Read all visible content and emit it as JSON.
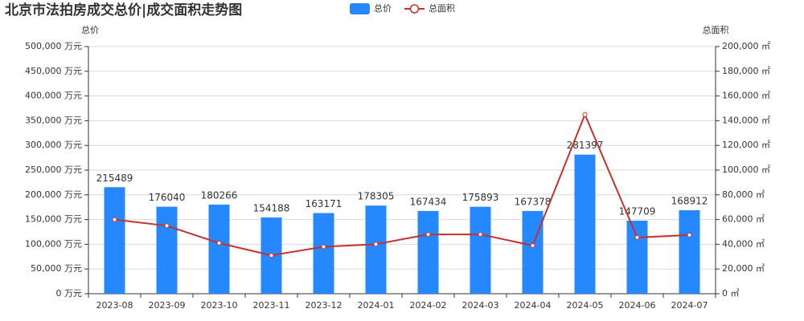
{
  "chart_data": {
    "type": "bar_line",
    "title": "北京市法拍房成交总价|成交面积走势图",
    "y_label": "总价",
    "y2_label": "总面积",
    "categories": [
      "2023-08",
      "2023-09",
      "2023-10",
      "2023-11",
      "2023-12",
      "2024-01",
      "2024-02",
      "2024-03",
      "2024-04",
      "2024-05",
      "2024-06",
      "2024-07"
    ],
    "series": [
      {
        "name": "总价",
        "type": "bar",
        "color": "#2688ff",
        "values": [
          215489,
          176040,
          180266,
          154188,
          163171,
          178305,
          167434,
          175893,
          167378,
          281397,
          147709,
          168912
        ]
      },
      {
        "name": "总面积",
        "type": "line",
        "axis": "y2",
        "color": "#c8302d",
        "values": [
          60000,
          55000,
          41000,
          31000,
          38000,
          40000,
          48000,
          48000,
          39000,
          145000,
          45500,
          47500
        ]
      }
    ],
    "ylim": [
      0,
      500000
    ],
    "yticks": [
      {
        "value": 0,
        "label": "0 万元"
      },
      {
        "value": 50000,
        "label": "50,000 万元"
      },
      {
        "value": 100000,
        "label": "100,000 万元"
      },
      {
        "value": 150000,
        "label": "150,000 万元"
      },
      {
        "value": 200000,
        "label": "200,000 万元"
      },
      {
        "value": 250000,
        "label": "250,000 万元"
      },
      {
        "value": 300000,
        "label": "300,000 万元"
      },
      {
        "value": 350000,
        "label": "350,000 万元"
      },
      {
        "value": 400000,
        "label": "400,000 万元"
      },
      {
        "value": 450000,
        "label": "450,000 万元"
      },
      {
        "value": 500000,
        "label": "500,000 万元"
      }
    ],
    "y2lim": [
      0,
      200000
    ],
    "y2ticks": [
      {
        "value": 0,
        "label": "0 ㎡"
      },
      {
        "value": 20000,
        "label": "20,000 ㎡"
      },
      {
        "value": 40000,
        "label": "40,000 ㎡"
      },
      {
        "value": 60000,
        "label": "60,000 ㎡"
      },
      {
        "value": 80000,
        "label": "80,000 ㎡"
      },
      {
        "value": 100000,
        "label": "100,000 ㎡"
      },
      {
        "value": 120000,
        "label": "120,000 ㎡"
      },
      {
        "value": 140000,
        "label": "140,000 ㎡"
      },
      {
        "value": 160000,
        "label": "160,000 ㎡"
      },
      {
        "value": 180000,
        "label": "180,000 ㎡"
      },
      {
        "value": 200000,
        "label": "200,000 ㎡"
      }
    ],
    "grid": true
  }
}
